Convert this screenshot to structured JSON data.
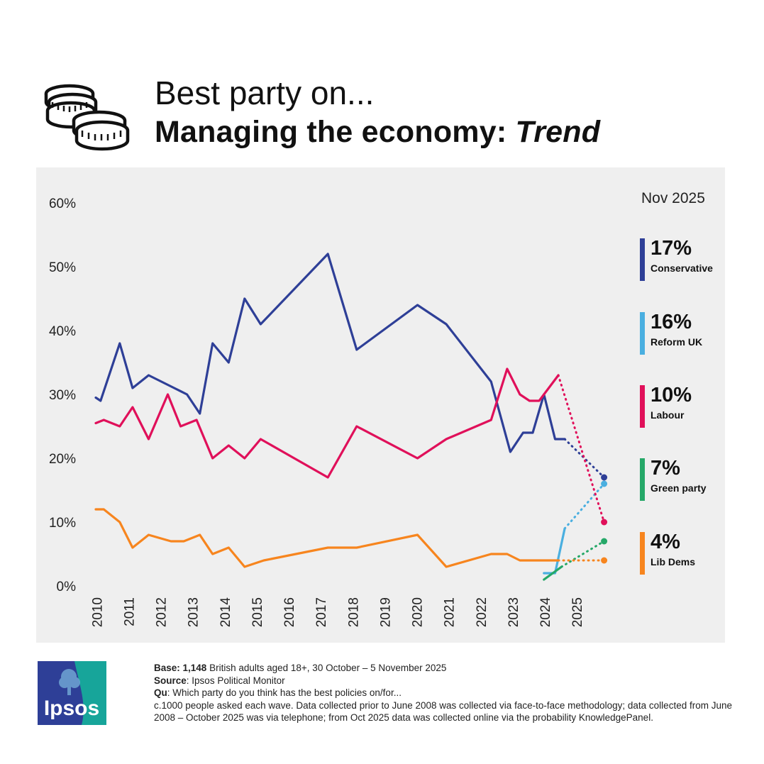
{
  "header": {
    "title_line1": "Best party on...",
    "title_line2": "Managing the economy:",
    "title_line2_em": "Trend"
  },
  "icons": {
    "header_icon": "coins-stack-icon"
  },
  "legend": {
    "as_of": "Nov 2025",
    "items": [
      {
        "value": "17%",
        "name": "Conservative",
        "color": "#2e3f97"
      },
      {
        "value": "16%",
        "name": "Reform UK",
        "color": "#4aafe0"
      },
      {
        "value": "10%",
        "name": "Labour",
        "color": "#e0105a"
      },
      {
        "value": "7%",
        "name": "Green party",
        "color": "#25a868"
      },
      {
        "value": "4%",
        "name": "Lib Dems",
        "color": "#f7851e"
      }
    ]
  },
  "footer": {
    "logo_text": "Ipsos",
    "base_label": "Base",
    "base_count": "1,148",
    "base_text": "British adults aged 18+,  30 October – 5 November 2025",
    "source_label": "Source",
    "source_text": "Ipsos Political Monitor",
    "qu_label": "Qu",
    "qu_text": "Which party do you think has the best policies on/for...",
    "note": "c.1000 people asked each wave. Data collected prior to June 2008 was collected via face-to-face methodology; data collected from June 2008 – October 2025 was via telephone; from Oct 2025 data was collected online via the probability KnowledgePanel."
  },
  "chart_data": {
    "type": "line",
    "ylim": [
      0,
      60
    ],
    "yticks": [
      "0%",
      "10%",
      "20%",
      "30%",
      "40%",
      "50%",
      "60%"
    ],
    "xlim": [
      2009.95,
      2025.95
    ],
    "xticks": [
      "2010",
      "2011",
      "2012",
      "2013",
      "2014",
      "2015",
      "2016",
      "2017",
      "2018",
      "2019",
      "2020",
      "2021",
      "2022",
      "2023",
      "2024",
      "2025"
    ],
    "latest_label": "Nov 2025",
    "latest_x": 2025.83,
    "series": [
      {
        "name": "Conservative",
        "color": "#2e3f97",
        "x": [
          2009.95,
          2010.1,
          2010.7,
          2011.1,
          2011.6,
          2012.4,
          2012.8,
          2013.2,
          2013.6,
          2014.1,
          2014.6,
          2015.1,
          2017.2,
          2018.1,
          2020.0,
          2020.9,
          2022.3,
          2022.9,
          2023.3,
          2023.6,
          2023.95,
          2024.3,
          2024.6
        ],
        "y": [
          29.5,
          29,
          38,
          31,
          33,
          31,
          30,
          27,
          38,
          35,
          45,
          41,
          52,
          37,
          44,
          41,
          32,
          21,
          24,
          24,
          30,
          23,
          23
        ],
        "latest": 17
      },
      {
        "name": "Reform UK",
        "color": "#4aafe0",
        "x": [
          2023.95,
          2024.3,
          2024.6
        ],
        "y": [
          2,
          2,
          9
        ],
        "latest": 16
      },
      {
        "name": "Labour",
        "color": "#e0105a",
        "x": [
          2009.95,
          2010.2,
          2010.7,
          2011.1,
          2011.6,
          2012.2,
          2012.6,
          2013.1,
          2013.6,
          2014.1,
          2014.6,
          2015.1,
          2017.2,
          2018.1,
          2020.0,
          2020.9,
          2022.3,
          2022.8,
          2023.2,
          2023.5,
          2023.8,
          2024.4
        ],
        "y": [
          25.5,
          26,
          25,
          28,
          23,
          30,
          25,
          26,
          20,
          22,
          20,
          23,
          17,
          25,
          20,
          23,
          26,
          34,
          30,
          29,
          29,
          33
        ],
        "latest": 10
      },
      {
        "name": "Green party",
        "color": "#25a868",
        "x": [
          2023.95,
          2024.5
        ],
        "y": [
          1,
          3
        ],
        "latest": 7
      },
      {
        "name": "Lib Dems",
        "color": "#f7851e",
        "x": [
          2009.95,
          2010.2,
          2010.7,
          2011.1,
          2011.6,
          2012.3,
          2012.7,
          2013.2,
          2013.6,
          2014.1,
          2014.6,
          2015.2,
          2017.2,
          2018.1,
          2020.0,
          2020.9,
          2022.3,
          2022.8,
          2023.2,
          2023.6,
          2024.0,
          2024.4
        ],
        "y": [
          12,
          12,
          10,
          6,
          8,
          7,
          7,
          8,
          5,
          6,
          3,
          4,
          6,
          6,
          8,
          3,
          5,
          5,
          4,
          4,
          4,
          4
        ],
        "latest": 4
      }
    ]
  }
}
